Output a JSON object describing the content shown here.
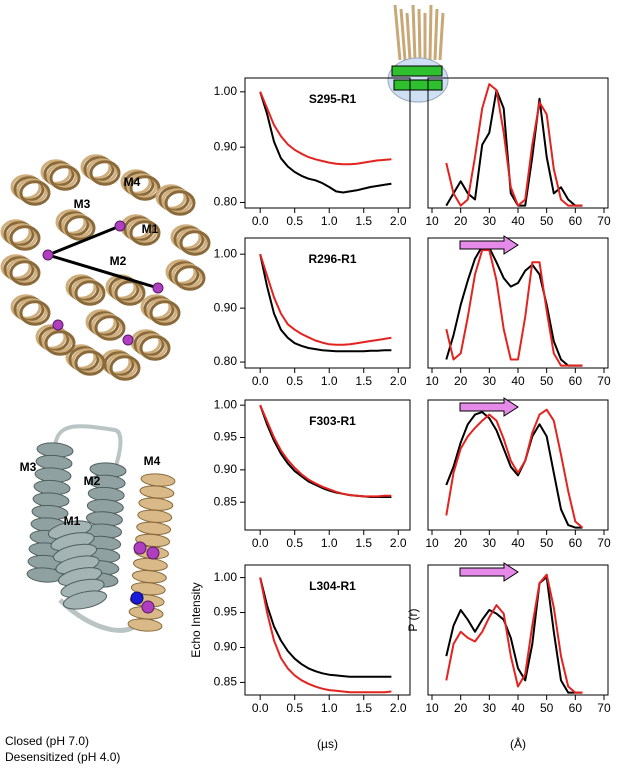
{
  "chart_data": [
    {
      "type": "line",
      "title": "S295-R1",
      "title_color": "#1a1adb",
      "x": [
        0,
        0.1,
        0.2,
        0.3,
        0.4,
        0.5,
        0.6,
        0.7,
        0.8,
        0.9,
        1.0,
        1.1,
        1.2,
        1.3,
        1.4,
        1.5,
        1.6,
        1.7,
        1.8,
        1.9
      ],
      "xlim": [
        -0.22,
        2.17
      ],
      "xticks": [
        {
          "value": 0,
          "label": "0.0"
        },
        {
          "value": 0.5,
          "label": "0.5"
        },
        {
          "value": 1,
          "label": "1.0"
        },
        {
          "value": 1.5,
          "label": "1.5"
        },
        {
          "value": 2,
          "label": "2.0"
        }
      ],
      "ylim": [
        0.79,
        1.025
      ],
      "yticks": [
        {
          "value": 1,
          "label": "1.00"
        },
        {
          "value": 0.9,
          "label": "0.90"
        },
        {
          "value": 0.8,
          "label": "0.80"
        }
      ],
      "series": [
        {
          "color": "#000000",
          "values": [
            1.0,
            0.96,
            0.91,
            0.88,
            0.865,
            0.855,
            0.848,
            0.843,
            0.84,
            0.835,
            0.828,
            0.82,
            0.818,
            0.82,
            0.822,
            0.825,
            0.828,
            0.83,
            0.832,
            0.834
          ]
        },
        {
          "color": "#e3231f",
          "values": [
            1.0,
            0.97,
            0.94,
            0.92,
            0.905,
            0.895,
            0.888,
            0.882,
            0.878,
            0.875,
            0.872,
            0.87,
            0.869,
            0.869,
            0.87,
            0.872,
            0.874,
            0.876,
            0.877,
            0.878
          ]
        }
      ]
    },
    {
      "type": "line",
      "x": [
        15,
        17.5,
        20,
        22.5,
        25,
        27.5,
        30,
        32.5,
        35,
        37.5,
        40,
        42.5,
        45,
        47.5,
        50,
        52.5,
        55,
        57.5,
        60,
        62.5
      ],
      "xlim": [
        8.6,
        71.4
      ],
      "xticks": [
        10,
        20,
        30,
        40,
        50,
        60,
        70
      ],
      "ylim": [
        -0.02,
        1.05
      ],
      "series": [
        {
          "color": "#000000",
          "values": [
            0,
            0.1,
            0.2,
            0.1,
            0.05,
            0.5,
            0.6,
            0.95,
            0.8,
            0.1,
            0,
            0,
            0.4,
            0.88,
            0.4,
            0.1,
            0.15,
            0.05,
            0,
            0
          ]
        },
        {
          "color": "#e3231f",
          "values": [
            0.35,
            0.1,
            0,
            0.05,
            0.4,
            0.8,
            1.0,
            0.95,
            0.6,
            0.15,
            0,
            0.05,
            0.5,
            0.85,
            0.75,
            0.3,
            0.05,
            0,
            0,
            0
          ]
        }
      ]
    },
    {
      "type": "line",
      "title": "R296-R1",
      "title_color": "#c03fc0",
      "x": [
        0,
        0.1,
        0.2,
        0.3,
        0.4,
        0.5,
        0.6,
        0.7,
        0.8,
        0.9,
        1.0,
        1.1,
        1.2,
        1.3,
        1.4,
        1.5,
        1.6,
        1.7,
        1.8,
        1.9
      ],
      "xlim": [
        -0.22,
        2.17
      ],
      "xticks": [
        {
          "value": 0,
          "label": "0.0"
        },
        {
          "value": 0.5,
          "label": "0.5"
        },
        {
          "value": 1,
          "label": "1.0"
        },
        {
          "value": 1.5,
          "label": "1.5"
        },
        {
          "value": 2,
          "label": "2.0"
        }
      ],
      "ylim": [
        0.789,
        1.03
      ],
      "yticks": [
        {
          "value": 1,
          "label": "1.00"
        },
        {
          "value": 0.9,
          "label": "0.90"
        },
        {
          "value": 0.8,
          "label": "0.80"
        }
      ],
      "series": [
        {
          "color": "#000000",
          "values": [
            1.0,
            0.94,
            0.89,
            0.86,
            0.845,
            0.835,
            0.83,
            0.826,
            0.824,
            0.822,
            0.821,
            0.82,
            0.82,
            0.82,
            0.82,
            0.82,
            0.821,
            0.821,
            0.822,
            0.822
          ]
        },
        {
          "color": "#e3231f",
          "values": [
            1.0,
            0.96,
            0.92,
            0.89,
            0.87,
            0.86,
            0.852,
            0.846,
            0.84,
            0.836,
            0.833,
            0.832,
            0.832,
            0.833,
            0.835,
            0.837,
            0.839,
            0.841,
            0.843,
            0.845
          ]
        }
      ]
    },
    {
      "type": "line",
      "arrow": true,
      "x": [
        15,
        17.5,
        20,
        22.5,
        25,
        27.5,
        30,
        32.5,
        35,
        37.5,
        40,
        42.5,
        45,
        47.5,
        50,
        52.5,
        55,
        57.5,
        60,
        62.5
      ],
      "xlim": [
        8.6,
        71.4
      ],
      "xticks": [
        10,
        20,
        30,
        40,
        50,
        60,
        70
      ],
      "ylim": [
        -0.02,
        1.05
      ],
      "series": [
        {
          "color": "#000000",
          "values": [
            0.05,
            0.25,
            0.5,
            0.7,
            0.88,
            0.98,
            0.97,
            0.85,
            0.72,
            0.65,
            0.68,
            0.78,
            0.83,
            0.75,
            0.5,
            0.2,
            0.05,
            0,
            0,
            0
          ]
        },
        {
          "color": "#e3231f",
          "values": [
            0.3,
            0.05,
            0.1,
            0.4,
            0.75,
            0.95,
            0.95,
            0.7,
            0.3,
            0.05,
            0.05,
            0.4,
            0.85,
            0.85,
            0.45,
            0.1,
            0,
            0,
            0,
            0
          ]
        }
      ]
    },
    {
      "type": "line",
      "title": "F303-R1",
      "title_color": "#c03fc0",
      "x": [
        0,
        0.1,
        0.2,
        0.3,
        0.4,
        0.5,
        0.6,
        0.7,
        0.8,
        0.9,
        1.0,
        1.1,
        1.2,
        1.3,
        1.4,
        1.5,
        1.6,
        1.7,
        1.8,
        1.9
      ],
      "xlim": [
        -0.22,
        2.17
      ],
      "xticks": [
        {
          "value": 0,
          "label": "0.0"
        },
        {
          "value": 0.5,
          "label": "0.5"
        },
        {
          "value": 1,
          "label": "1.0"
        },
        {
          "value": 1.5,
          "label": "1.5"
        },
        {
          "value": 2,
          "label": "2.0"
        }
      ],
      "ylim": [
        0.807,
        1.008
      ],
      "yticks": [
        {
          "value": 1,
          "label": "1.00"
        },
        {
          "value": 0.95,
          "label": "0.95"
        },
        {
          "value": 0.9,
          "label": "0.90"
        },
        {
          "value": 0.85,
          "label": "0.85"
        }
      ],
      "series": [
        {
          "color": "#000000",
          "values": [
            1.0,
            0.97,
            0.945,
            0.925,
            0.91,
            0.898,
            0.89,
            0.882,
            0.877,
            0.872,
            0.868,
            0.865,
            0.863,
            0.861,
            0.86,
            0.859,
            0.858,
            0.858,
            0.858,
            0.858
          ]
        },
        {
          "color": "#e3231f",
          "values": [
            1.0,
            0.975,
            0.95,
            0.93,
            0.915,
            0.903,
            0.893,
            0.885,
            0.879,
            0.874,
            0.87,
            0.866,
            0.863,
            0.861,
            0.86,
            0.859,
            0.859,
            0.859,
            0.86,
            0.86
          ]
        }
      ]
    },
    {
      "type": "line",
      "arrow": true,
      "x": [
        15,
        17.5,
        20,
        22.5,
        25,
        27.5,
        30,
        32.5,
        35,
        37.5,
        40,
        42.5,
        45,
        47.5,
        50,
        52.5,
        55,
        57.5,
        60,
        62.5
      ],
      "xlim": [
        8.6,
        71.4
      ],
      "xticks": [
        10,
        20,
        30,
        40,
        50,
        60,
        70
      ],
      "ylim": [
        -0.02,
        1.05
      ],
      "series": [
        {
          "color": "#000000",
          "values": [
            0.35,
            0.5,
            0.7,
            0.85,
            0.93,
            0.95,
            0.9,
            0.8,
            0.65,
            0.5,
            0.43,
            0.55,
            0.75,
            0.85,
            0.75,
            0.45,
            0.15,
            0.02,
            0,
            0
          ]
        },
        {
          "color": "#e3231f",
          "values": [
            0.1,
            0.45,
            0.65,
            0.75,
            0.82,
            0.88,
            0.93,
            0.88,
            0.73,
            0.55,
            0.45,
            0.55,
            0.78,
            0.93,
            0.97,
            0.88,
            0.6,
            0.3,
            0.05,
            0
          ]
        }
      ]
    },
    {
      "type": "line",
      "title": "L304-R1",
      "title_color": "#c03fc0",
      "xlabel": "(µs)",
      "ylabel": "Echo Intensity",
      "x": [
        0,
        0.1,
        0.2,
        0.3,
        0.4,
        0.5,
        0.6,
        0.7,
        0.8,
        0.9,
        1.0,
        1.1,
        1.2,
        1.3,
        1.4,
        1.5,
        1.6,
        1.7,
        1.8,
        1.9
      ],
      "xlim": [
        -0.22,
        2.17
      ],
      "xticks": [
        {
          "value": 0,
          "label": "0.0"
        },
        {
          "value": 0.5,
          "label": "0.5"
        },
        {
          "value": 1,
          "label": "1.0"
        },
        {
          "value": 1.5,
          "label": "1.5"
        },
        {
          "value": 2,
          "label": "2.0"
        }
      ],
      "ylim": [
        0.832,
        1.018
      ],
      "yticks": [
        {
          "value": 1,
          "label": "1.00"
        },
        {
          "value": 0.95,
          "label": "0.95"
        },
        {
          "value": 0.9,
          "label": "0.90"
        },
        {
          "value": 0.85,
          "label": "0.85"
        }
      ],
      "series": [
        {
          "color": "#000000",
          "values": [
            1.0,
            0.96,
            0.93,
            0.91,
            0.895,
            0.884,
            0.876,
            0.87,
            0.866,
            0.863,
            0.861,
            0.86,
            0.859,
            0.858,
            0.858,
            0.858,
            0.858,
            0.858,
            0.858,
            0.858
          ]
        },
        {
          "color": "#e3231f",
          "values": [
            1.0,
            0.95,
            0.91,
            0.885,
            0.87,
            0.86,
            0.853,
            0.848,
            0.844,
            0.841,
            0.839,
            0.838,
            0.837,
            0.836,
            0.836,
            0.836,
            0.836,
            0.836,
            0.836,
            0.837
          ]
        }
      ]
    },
    {
      "type": "line",
      "arrow": true,
      "xlabel": "(Å)",
      "ylabel": "P (r)",
      "x": [
        15,
        17.5,
        20,
        22.5,
        25,
        27.5,
        30,
        32.5,
        35,
        37.5,
        40,
        42.5,
        45,
        47.5,
        50,
        52.5,
        55,
        57.5,
        60,
        62.5
      ],
      "xlim": [
        8.6,
        71.4
      ],
      "xticks": [
        10,
        20,
        30,
        40,
        50,
        60,
        70
      ],
      "ylim": [
        -0.02,
        1.05
      ],
      "series": [
        {
          "color": "#000000",
          "values": [
            0.3,
            0.55,
            0.68,
            0.6,
            0.5,
            0.6,
            0.68,
            0.65,
            0.6,
            0.45,
            0.2,
            0.1,
            0.4,
            0.9,
            0.95,
            0.5,
            0.1,
            0,
            0,
            0
          ]
        },
        {
          "color": "#e3231f",
          "values": [
            0.1,
            0.4,
            0.5,
            0.45,
            0.42,
            0.5,
            0.62,
            0.72,
            0.65,
            0.3,
            0.05,
            0.15,
            0.55,
            0.9,
            0.97,
            0.7,
            0.3,
            0.05,
            0,
            0
          ]
        }
      ]
    }
  ],
  "legend": [
    {
      "label": "Closed (pH 7.0)",
      "color": "#000000"
    },
    {
      "label": "Desensitized (pH 4.0)",
      "color": "#e3231f"
    }
  ],
  "structure_labels": {
    "top": [
      "M4",
      "M3",
      "M1",
      "M2"
    ],
    "bottom": [
      "M3",
      "M2",
      "M1",
      "M4"
    ]
  }
}
